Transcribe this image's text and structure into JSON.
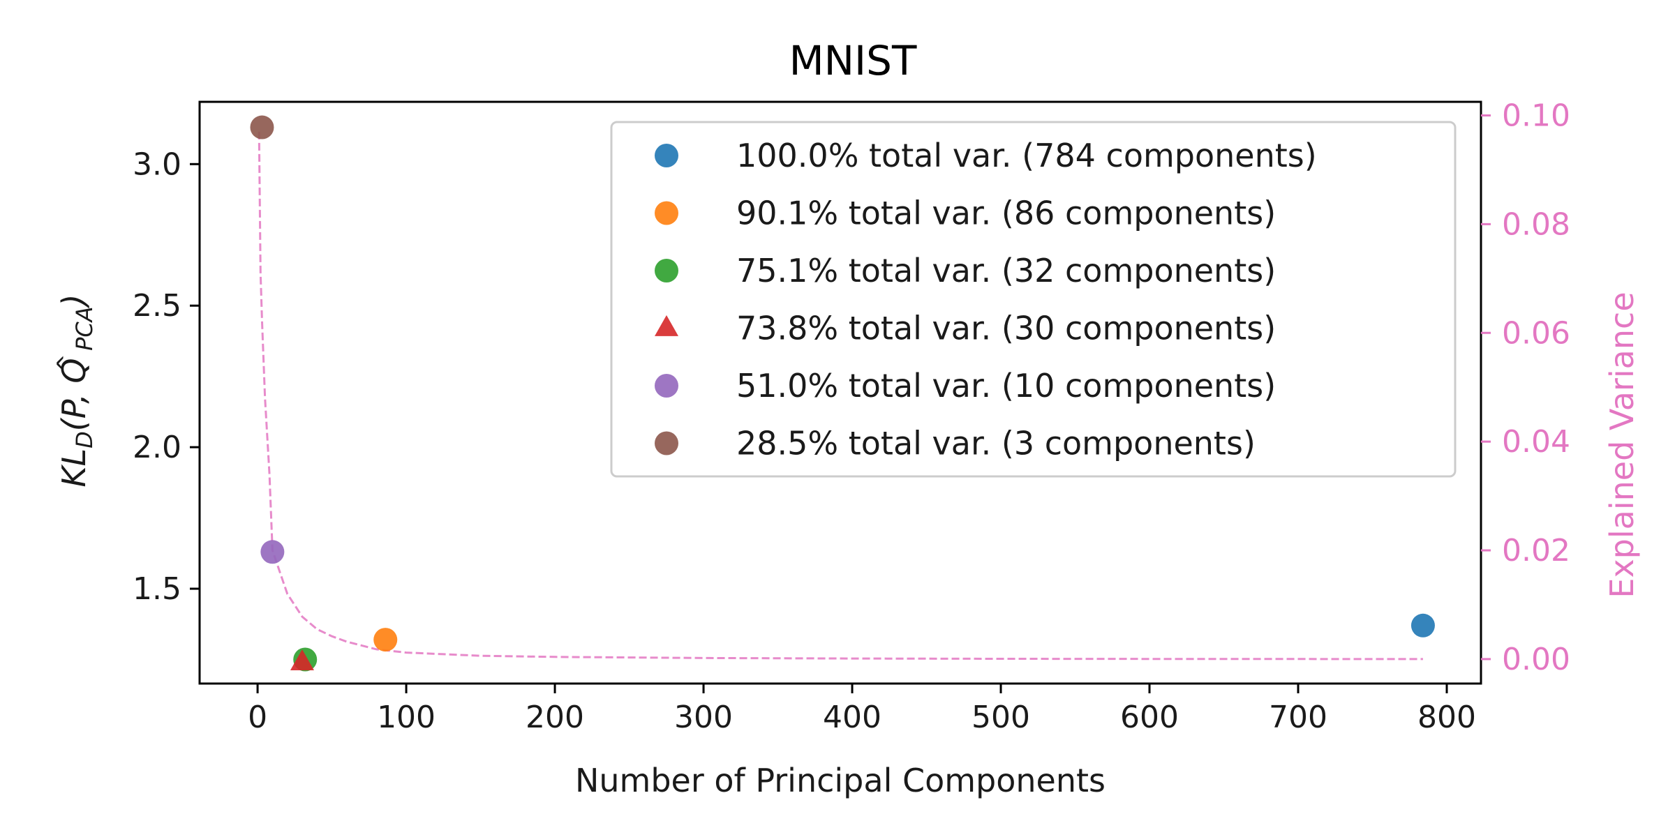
{
  "chart_data": {
    "type": "scatter",
    "title": "MNIST",
    "xlabel": "Number of Principal Components",
    "ylabel": {
      "base": "KL",
      "base_sub": "D",
      "open": "(P, ",
      "q": "Q",
      "q_hat": "^",
      "q_sub": "PCA",
      "close": ")"
    },
    "y2label": "Explained Variance",
    "xlim": [
      -39,
      823
    ],
    "ylim": [
      1.165,
      3.22
    ],
    "y2lim": [
      -0.0045,
      0.1025
    ],
    "xticks": [
      0,
      100,
      200,
      300,
      400,
      500,
      600,
      700,
      800
    ],
    "yticks": [
      1.5,
      2.0,
      2.5,
      3.0
    ],
    "y2ticks": [
      0.0,
      0.02,
      0.04,
      0.06,
      0.08,
      0.1
    ],
    "ytick_labels": [
      "1.5",
      "2.0",
      "2.5",
      "3.0"
    ],
    "y2tick_labels": [
      "0.00",
      "0.02",
      "0.04",
      "0.06",
      "0.08",
      "0.10"
    ],
    "legend_position": "upper-right",
    "series": [
      {
        "name": "100.0% total var. (784 components)",
        "marker": "circle",
        "color": "#1f77b4",
        "x": 784,
        "y": 1.37
      },
      {
        "name": "90.1% total var. (86 components)",
        "marker": "circle",
        "color": "#ff7f0e",
        "x": 86,
        "y": 1.32
      },
      {
        "name": "75.1% total var. (32 components)",
        "marker": "circle",
        "color": "#2ca02c",
        "x": 32,
        "y": 1.25
      },
      {
        "name": "73.8% total var. (30 components)",
        "marker": "triangle",
        "color": "#d62728",
        "x": 30,
        "y": 1.24
      },
      {
        "name": "51.0% total var. (10 components)",
        "marker": "circle",
        "color": "#9467bd",
        "x": 10,
        "y": 1.63
      },
      {
        "name": "28.5% total var. (3 components)",
        "marker": "circle",
        "color": "#8c564b",
        "x": 3,
        "y": 3.13
      }
    ],
    "explained_variance": {
      "color": "#e377c2",
      "style": "dashed",
      "x": [
        1,
        2,
        3,
        5,
        8,
        10,
        15,
        20,
        30,
        40,
        50,
        60,
        80,
        100,
        150,
        200,
        300,
        400,
        500,
        600,
        700,
        784
      ],
      "y": [
        0.097,
        0.071,
        0.062,
        0.048,
        0.034,
        0.02,
        0.016,
        0.012,
        0.0078,
        0.0055,
        0.0042,
        0.0032,
        0.0018,
        0.0012,
        0.0006,
        0.0004,
        0.0002,
        0.0001,
        6e-05,
        3e-05,
        1e-05,
        0.0
      ]
    }
  }
}
